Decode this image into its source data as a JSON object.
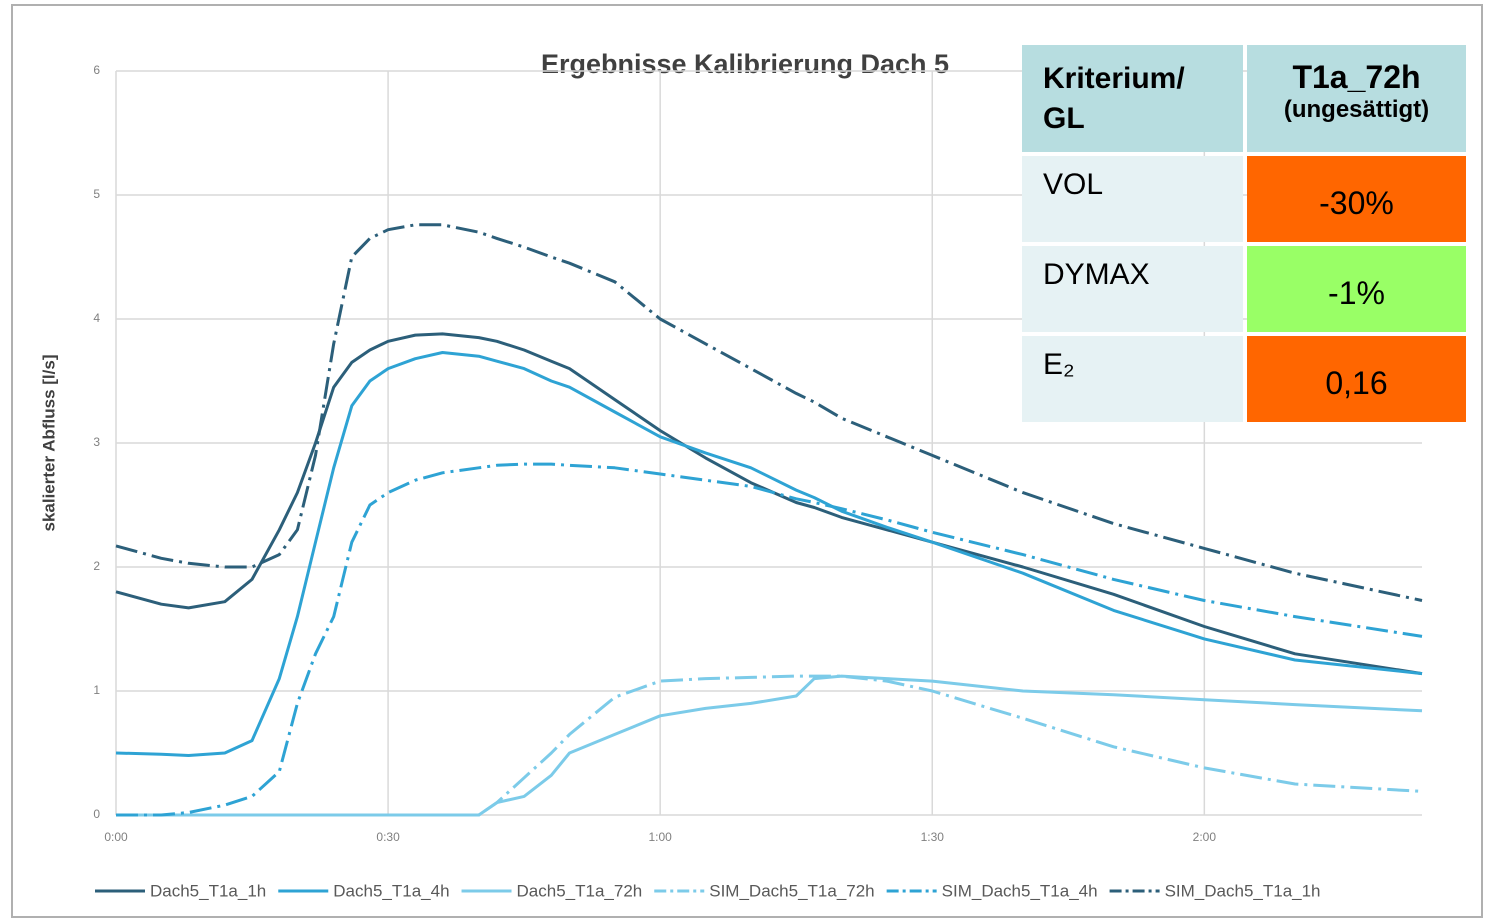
{
  "chart_data": {
    "type": "line",
    "title": "Ergebnisse Kalibrierung Dach 5",
    "y_label": "skalierter Abfluss [l/s]",
    "x": [
      0,
      5,
      8,
      12,
      15,
      18,
      20,
      22,
      24,
      26,
      28,
      30,
      33,
      36,
      40,
      42,
      45,
      48,
      50,
      55,
      60,
      65,
      70,
      75,
      77,
      80,
      85,
      90,
      100,
      110,
      120,
      130,
      144
    ],
    "xlim": [
      0,
      144
    ],
    "xticks": [
      {
        "value": 0,
        "label": "0:00"
      },
      {
        "value": 30,
        "label": "0:30"
      },
      {
        "value": 60,
        "label": "1:00"
      },
      {
        "value": 90,
        "label": "1:30"
      },
      {
        "value": 120,
        "label": "2:00"
      }
    ],
    "ylim": [
      0,
      6
    ],
    "yticks": [
      0,
      1,
      2,
      3,
      4,
      5,
      6
    ],
    "grid": true,
    "legend": "bottom",
    "series": [
      {
        "name": "Dach5_T1a_1h",
        "color": "#2c5f7a",
        "style": "solid",
        "values": [
          1.8,
          1.7,
          1.67,
          1.72,
          1.9,
          2.3,
          2.6,
          3.0,
          3.45,
          3.65,
          3.75,
          3.82,
          3.87,
          3.88,
          3.85,
          3.82,
          3.75,
          3.66,
          3.6,
          3.35,
          3.1,
          2.88,
          2.68,
          2.52,
          2.48,
          2.4,
          2.3,
          2.2,
          2.0,
          1.78,
          1.52,
          1.3,
          1.14
        ]
      },
      {
        "name": "Dach5_T1a_4h",
        "color": "#2ea3d4",
        "style": "solid",
        "values": [
          0.5,
          0.49,
          0.48,
          0.5,
          0.6,
          1.1,
          1.6,
          2.2,
          2.8,
          3.3,
          3.5,
          3.6,
          3.68,
          3.73,
          3.7,
          3.66,
          3.6,
          3.5,
          3.45,
          3.25,
          3.05,
          2.92,
          2.8,
          2.62,
          2.56,
          2.45,
          2.32,
          2.2,
          1.95,
          1.65,
          1.42,
          1.25,
          1.14
        ]
      },
      {
        "name": "Dach5_T1a_72h",
        "color": "#7ccbe9",
        "style": "solid",
        "values": [
          0,
          0,
          0,
          0,
          0,
          0,
          0,
          0,
          0,
          0,
          0,
          0,
          0,
          0,
          0,
          0.1,
          0.15,
          0.32,
          0.5,
          0.65,
          0.8,
          0.86,
          0.9,
          0.96,
          1.1,
          1.12,
          1.1,
          1.08,
          1.0,
          0.97,
          0.93,
          0.89,
          0.84
        ]
      },
      {
        "name": "SIM_Dach5_T1a_72h",
        "color": "#7ccbe9",
        "style": "dash-dot",
        "values": [
          0,
          0,
          0,
          0,
          0,
          0,
          0,
          0,
          0,
          0,
          0,
          0,
          0,
          0,
          0,
          0.1,
          0.3,
          0.5,
          0.65,
          0.95,
          1.08,
          1.1,
          1.11,
          1.12,
          1.12,
          1.12,
          1.08,
          1.0,
          0.78,
          0.55,
          0.38,
          0.25,
          0.19
        ]
      },
      {
        "name": "SIM_Dach5_T1a_4h",
        "color": "#2ea3d4",
        "style": "dash-dot",
        "values": [
          0,
          0,
          0.02,
          0.08,
          0.15,
          0.35,
          0.9,
          1.3,
          1.6,
          2.2,
          2.5,
          2.6,
          2.7,
          2.76,
          2.8,
          2.82,
          2.83,
          2.83,
          2.82,
          2.8,
          2.75,
          2.7,
          2.65,
          2.55,
          2.52,
          2.47,
          2.38,
          2.28,
          2.1,
          1.9,
          1.73,
          1.6,
          1.44
        ]
      },
      {
        "name": "SIM_Dach5_T1a_1h",
        "color": "#2c5f7a",
        "style": "dash-dot",
        "values": [
          2.17,
          2.07,
          2.03,
          2.0,
          2.0,
          2.1,
          2.3,
          2.9,
          3.8,
          4.5,
          4.65,
          4.72,
          4.76,
          4.76,
          4.7,
          4.65,
          4.58,
          4.5,
          4.45,
          4.3,
          4.0,
          3.8,
          3.6,
          3.4,
          3.33,
          3.2,
          3.05,
          2.9,
          2.6,
          2.35,
          2.15,
          1.95,
          1.73
        ]
      }
    ]
  },
  "table": {
    "header": {
      "criterion": "Kriterium/ GL",
      "column": "T1a_72h",
      "column_note": "(ungesättigt)"
    },
    "rows": [
      {
        "label": "VOL",
        "value": "-30%",
        "color": "#ff6600"
      },
      {
        "label": "DYMAX",
        "value": "-1%",
        "color": "#99ff66"
      },
      {
        "label": "E₂",
        "value": "0,16",
        "color": "#ff6600"
      }
    ]
  }
}
